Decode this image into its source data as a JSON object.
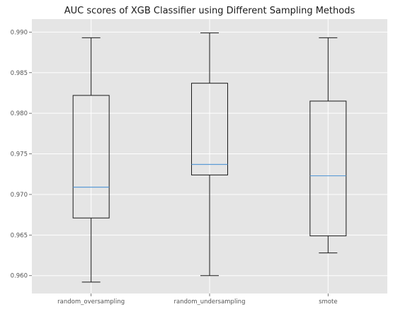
{
  "chart_data": {
    "type": "box",
    "title": "AUC scores of XGB Classifier using Different Sampling Methods",
    "xlabel": "",
    "ylabel": "",
    "ylim": [
      0.9578,
      0.9916
    ],
    "yticks": [
      "0.960",
      "0.965",
      "0.970",
      "0.975",
      "0.980",
      "0.985",
      "0.990"
    ],
    "ytick_values": [
      0.96,
      0.965,
      0.97,
      0.975,
      0.98,
      0.985,
      0.99
    ],
    "grid": true,
    "categories": [
      "random_oversampling",
      "random_undersampling",
      "smote"
    ],
    "boxes": [
      {
        "category": "random_oversampling",
        "whisker_low": 0.9592,
        "q1": 0.9671,
        "median": 0.9709,
        "q3": 0.9822,
        "whisker_high": 0.9893
      },
      {
        "category": "random_undersampling",
        "whisker_low": 0.96,
        "q1": 0.9724,
        "median": 0.9737,
        "q3": 0.9837,
        "whisker_high": 0.9899
      },
      {
        "category": "smote",
        "whisker_low": 0.9628,
        "q1": 0.9649,
        "median": 0.9723,
        "q3": 0.9815,
        "whisker_high": 0.9893
      }
    ],
    "colors": {
      "background": "#e5e5e5",
      "grid": "#ffffff",
      "box": "#1a1a1a",
      "median": "#5b9bd5"
    }
  }
}
